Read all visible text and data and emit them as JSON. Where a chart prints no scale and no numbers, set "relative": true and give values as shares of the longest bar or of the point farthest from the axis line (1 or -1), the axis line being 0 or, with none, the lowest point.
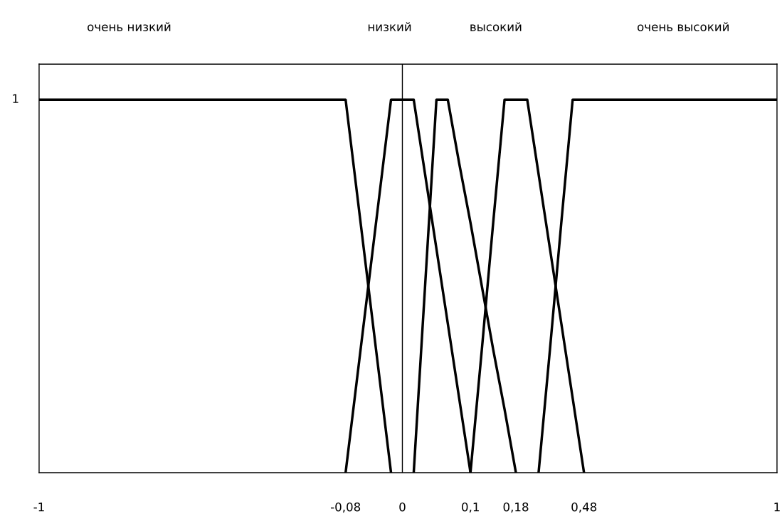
{
  "chart_data": {
    "type": "line",
    "relative": true,
    "categories": [
      "-1",
      null,
      null,
      null,
      null,
      null,
      null,
      null,
      null,
      null,
      null,
      null,
      null,
      null,
      null,
      null,
      null,
      null,
      null,
      null,
      null,
      null,
      null,
      null,
      null,
      null,
      null,
      "-0,08",
      null,
      null,
      null,
      null,
      "0",
      null,
      null,
      null,
      null,
      null,
      "0,1",
      null,
      null,
      null,
      "0,18",
      null,
      null,
      null,
      null,
      null,
      "0,48",
      null,
      null,
      null,
      null,
      null,
      null,
      null,
      null,
      null,
      null,
      null,
      null,
      null,
      null,
      null,
      null,
      "1"
    ],
    "series": [
      {
        "color": "#000000",
        "values": [
          1,
          1,
          1,
          1,
          1,
          1,
          1,
          1,
          1,
          1,
          1,
          1,
          1,
          1,
          1,
          1,
          1,
          1,
          1,
          1,
          1,
          1,
          1,
          1,
          1,
          1,
          1,
          1,
          0.75,
          0.5,
          0.25,
          0,
          null,
          null,
          null,
          null,
          null,
          null,
          null,
          null,
          null,
          null,
          null,
          null,
          null,
          null,
          null,
          null,
          null,
          null,
          null,
          null,
          null,
          null,
          null,
          null,
          null,
          null,
          null,
          null,
          null,
          null,
          null,
          null,
          null,
          null
        ]
      },
      {
        "color": "#000000",
        "values": [
          null,
          null,
          null,
          null,
          null,
          null,
          null,
          null,
          null,
          null,
          null,
          null,
          null,
          null,
          null,
          null,
          null,
          null,
          null,
          null,
          null,
          null,
          null,
          null,
          null,
          null,
          null,
          0,
          0.25,
          0.5,
          0.75,
          1,
          1,
          1,
          0.8,
          0.6,
          0.4,
          0.2,
          0,
          null,
          null,
          null,
          null,
          null,
          null,
          null,
          null,
          null,
          null,
          null,
          null,
          null,
          null,
          null,
          null,
          null,
          null,
          null,
          null,
          null,
          null,
          null,
          null,
          null,
          null,
          null
        ]
      },
      {
        "color": "#000000",
        "values": [
          null,
          null,
          null,
          null,
          null,
          null,
          null,
          null,
          null,
          null,
          null,
          null,
          null,
          null,
          null,
          null,
          null,
          null,
          null,
          null,
          null,
          null,
          null,
          null,
          null,
          null,
          null,
          null,
          null,
          null,
          null,
          null,
          null,
          0,
          0.5,
          1,
          1,
          0.83,
          0.67,
          0.5,
          0.33,
          0.17,
          0,
          null,
          null,
          null,
          null,
          null,
          null,
          null,
          null,
          null,
          null,
          null,
          null,
          null,
          null,
          null,
          null,
          null,
          null,
          null,
          null,
          null,
          null,
          null
        ]
      },
      {
        "color": "#000000",
        "values": [
          null,
          null,
          null,
          null,
          null,
          null,
          null,
          null,
          null,
          null,
          null,
          null,
          null,
          null,
          null,
          null,
          null,
          null,
          null,
          null,
          null,
          null,
          null,
          null,
          null,
          null,
          null,
          null,
          null,
          null,
          null,
          null,
          null,
          null,
          null,
          null,
          null,
          null,
          0,
          0.33,
          0.67,
          1,
          1,
          1,
          0.8,
          0.6,
          0.4,
          0.2,
          0,
          null,
          null,
          null,
          null,
          null,
          null,
          null,
          null,
          null,
          null,
          null,
          null,
          null,
          null,
          null,
          null,
          null
        ]
      },
      {
        "color": "#000000",
        "values": [
          null,
          null,
          null,
          null,
          null,
          null,
          null,
          null,
          null,
          null,
          null,
          null,
          null,
          null,
          null,
          null,
          null,
          null,
          null,
          null,
          null,
          null,
          null,
          null,
          null,
          null,
          null,
          null,
          null,
          null,
          null,
          null,
          null,
          null,
          null,
          null,
          null,
          null,
          null,
          null,
          null,
          null,
          null,
          null,
          0,
          0.33,
          0.67,
          1,
          1,
          1,
          1,
          1,
          1,
          1,
          1,
          1,
          1,
          1,
          1,
          1,
          1,
          1,
          1,
          1,
          1,
          1
        ]
      }
    ],
    "ref_lines": [
      {
        "axis": "x",
        "value": "0",
        "color": "#000000"
      }
    ],
    "annotations": [
      "очень низкий",
      "низкий",
      "высокий",
      "очень высокий",
      "1"
    ],
    "legend": false,
    "marker": "none",
    "line_style": "solid"
  }
}
